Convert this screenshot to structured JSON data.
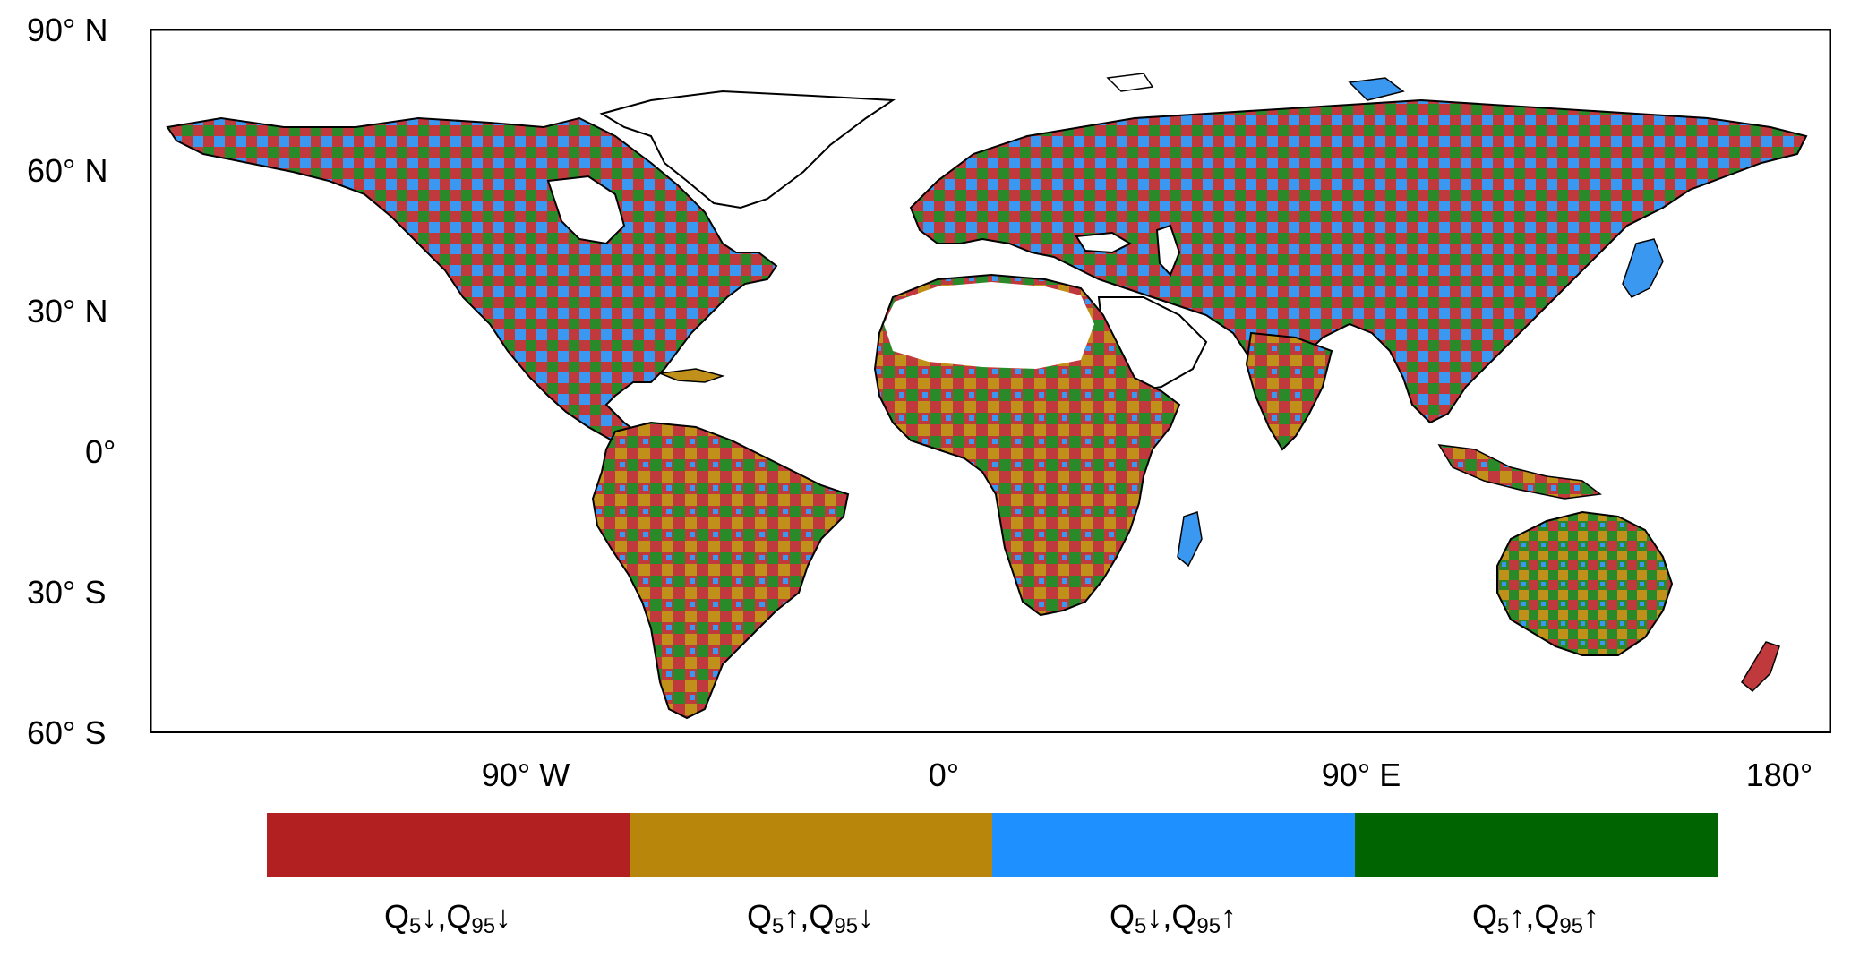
{
  "map": {
    "lat_labels": [
      "90° N",
      "60° N",
      "30° N",
      "0°",
      "30° S",
      "60° S"
    ],
    "lon_labels": [
      "90° W",
      "0°",
      "90° E",
      "180°"
    ]
  },
  "legend": {
    "entries": [
      {
        "q5": "Q",
        "q5_sub": "5",
        "q5_arrow": "↓",
        "sep": ",",
        "q95": "Q",
        "q95_sub": "95",
        "q95_arrow": "↓",
        "color": "#b22022"
      },
      {
        "q5": "Q",
        "q5_sub": "5",
        "q5_arrow": "↑",
        "sep": ",",
        "q95": "Q",
        "q95_sub": "95",
        "q95_arrow": "↓",
        "color": "#b8860b"
      },
      {
        "q5": "Q",
        "q5_sub": "5",
        "q5_arrow": "↓",
        "sep": ",",
        "q95": "Q",
        "q95_sub": "95",
        "q95_arrow": "↑",
        "color": "#1e90ff"
      },
      {
        "q5": "Q",
        "q5_sub": "5",
        "q5_arrow": "↑",
        "sep": ",",
        "q95": "Q",
        "q95_sub": "95",
        "q95_arrow": "↑",
        "color": "#006400"
      }
    ]
  }
}
